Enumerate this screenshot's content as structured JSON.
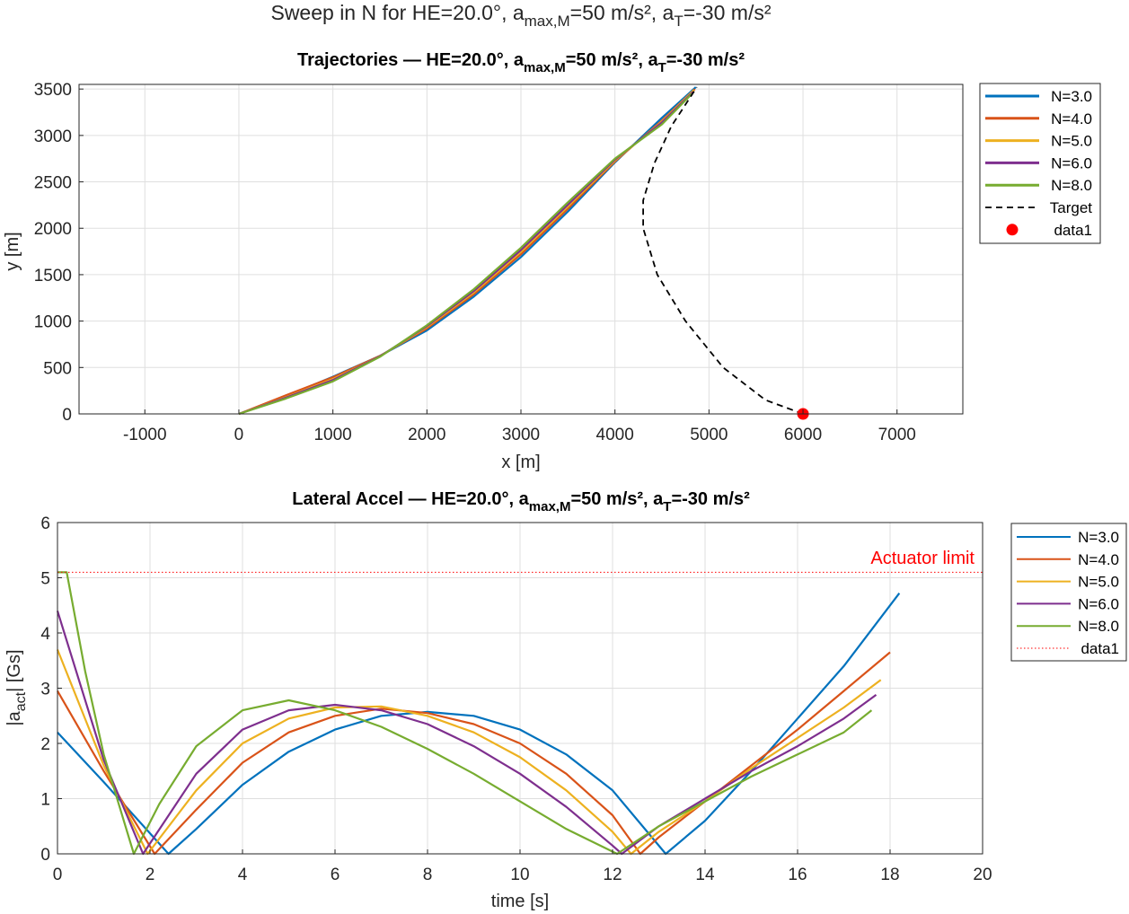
{
  "figure": {
    "title": {
      "prefix": "Sweep in N for HE=20.0°, a",
      "sub1": "max,M",
      "mid": "=50 m/s², a",
      "sub2": "T",
      "suffix": "=-30 m/s²"
    }
  },
  "colors": {
    "N=3.0": "#0072BD",
    "N=4.0": "#D95319",
    "N=5.0": "#EDB120",
    "N=6.0": "#7E2F8E",
    "N=8.0": "#77AC30",
    "target": "#000000",
    "marker": "#FF0000",
    "limit": "#FF0000",
    "grid": "#dfdfdf"
  },
  "chart_data": [
    {
      "type": "line",
      "title": {
        "prefix": "Trajectories — HE=20.0°, a",
        "sub1": "max,M",
        "mid": "=50 m/s², a",
        "sub2": "T",
        "suffix": "=-30 m/s²"
      },
      "xlabel": "x [m]",
      "ylabel": "y [m]",
      "xlim": [
        -1700,
        7700
      ],
      "ylim": [
        0,
        3550
      ],
      "xticks": [
        -1000,
        0,
        1000,
        2000,
        3000,
        4000,
        5000,
        6000,
        7000
      ],
      "yticks": [
        0,
        500,
        1000,
        1500,
        2000,
        2500,
        3000,
        3500
      ],
      "grid": true,
      "legend_position": "outside-right",
      "series": [
        {
          "name": "N=3.0",
          "x": [
            0,
            500,
            1000,
            1500,
            2000,
            2500,
            3000,
            3500,
            4000,
            4500,
            4860
          ],
          "y": [
            0,
            190,
            400,
            625,
            900,
            1265,
            1690,
            2180,
            2710,
            3190,
            3520
          ]
        },
        {
          "name": "N=4.0",
          "x": [
            0,
            500,
            1000,
            1500,
            2000,
            2500,
            3000,
            3500,
            4000,
            4500,
            4850
          ],
          "y": [
            0,
            200,
            395,
            625,
            920,
            1290,
            1720,
            2210,
            2720,
            3160,
            3500
          ]
        },
        {
          "name": "N=5.0",
          "x": [
            0,
            500,
            1000,
            1500,
            2000,
            2500,
            3000,
            3500,
            4000,
            4500,
            4840
          ],
          "y": [
            0,
            180,
            375,
            620,
            935,
            1310,
            1745,
            2235,
            2730,
            3150,
            3490
          ]
        },
        {
          "name": "N=6.0",
          "x": [
            0,
            500,
            1000,
            1500,
            2000,
            2500,
            3000,
            3500,
            4000,
            4500,
            4830
          ],
          "y": [
            0,
            175,
            365,
            620,
            945,
            1325,
            1765,
            2255,
            2740,
            3140,
            3470
          ]
        },
        {
          "name": "N=8.0",
          "x": [
            0,
            500,
            1000,
            1500,
            2000,
            2500,
            3000,
            3500,
            4000,
            4500,
            4820
          ],
          "y": [
            0,
            165,
            350,
            615,
            955,
            1345,
            1790,
            2280,
            2750,
            3120,
            3450
          ]
        },
        {
          "name": "Target",
          "style": "dashed",
          "x": [
            6000,
            5600,
            5150,
            4750,
            4450,
            4300,
            4300,
            4420,
            4600,
            4870
          ],
          "y": [
            0,
            150,
            500,
            1000,
            1500,
            2000,
            2300,
            2700,
            3100,
            3520
          ]
        },
        {
          "name": "data1",
          "style": "marker",
          "x": [
            6000
          ],
          "y": [
            0
          ]
        }
      ]
    },
    {
      "type": "line",
      "title": {
        "prefix": "Lateral Accel — HE=20.0°, a",
        "sub1": "max,M",
        "mid": "=50 m/s², a",
        "sub2": "T",
        "suffix": "=-30 m/s²"
      },
      "xlabel": "time [s]",
      "ylabel": {
        "prefix": "|a",
        "sub": "act",
        "suffix": "| [Gs]"
      },
      "xlim": [
        0,
        20
      ],
      "ylim": [
        0,
        6
      ],
      "xticks": [
        0,
        2,
        4,
        6,
        8,
        10,
        12,
        14,
        16,
        18,
        20
      ],
      "yticks": [
        0,
        1,
        2,
        3,
        4,
        5,
        6
      ],
      "grid": true,
      "legend_position": "outside-right",
      "annotation": "Actuator limit",
      "series": [
        {
          "name": "N=3.0",
          "x": [
            0,
            1,
            2.4,
            3,
            4,
            5,
            6,
            7,
            8,
            9,
            10,
            11,
            12,
            13.15,
            14,
            15,
            16,
            17,
            18.2
          ],
          "y": [
            2.2,
            1.3,
            0,
            0.45,
            1.25,
            1.85,
            2.25,
            2.5,
            2.57,
            2.5,
            2.25,
            1.8,
            1.15,
            0,
            0.6,
            1.5,
            2.45,
            3.4,
            4.72
          ]
        },
        {
          "name": "N=4.0",
          "x": [
            0,
            1,
            2.1,
            3,
            4,
            5,
            6,
            7,
            8,
            9,
            10,
            11,
            12,
            12.6,
            13,
            14,
            15,
            16,
            17,
            18
          ],
          "y": [
            2.95,
            1.5,
            0,
            0.8,
            1.65,
            2.2,
            2.5,
            2.63,
            2.55,
            2.35,
            2.0,
            1.45,
            0.7,
            0,
            0.3,
            0.95,
            1.6,
            2.25,
            2.95,
            3.65
          ]
        },
        {
          "name": "N=5.0",
          "x": [
            0,
            1,
            1.95,
            3,
            4,
            5,
            6,
            7,
            8,
            9,
            10,
            11,
            12,
            12.4,
            13,
            14,
            15,
            16,
            17,
            17.8
          ],
          "y": [
            3.7,
            1.6,
            0,
            1.15,
            2.0,
            2.45,
            2.65,
            2.67,
            2.5,
            2.2,
            1.75,
            1.15,
            0.4,
            0,
            0.4,
            0.95,
            1.55,
            2.1,
            2.65,
            3.15
          ]
        },
        {
          "name": "N=6.0",
          "x": [
            0,
            1,
            1.85,
            3,
            4,
            5,
            6,
            7,
            8,
            9,
            10,
            11,
            12,
            12.2,
            13,
            14,
            15,
            16,
            17,
            17.7
          ],
          "y": [
            4.4,
            1.7,
            0,
            1.45,
            2.25,
            2.6,
            2.7,
            2.6,
            2.35,
            1.95,
            1.45,
            0.85,
            0.15,
            0,
            0.5,
            1.0,
            1.5,
            1.95,
            2.45,
            2.88
          ]
        },
        {
          "name": "N=8.0",
          "x": [
            0,
            0.2,
            0.6,
            1.0,
            1.65,
            2.2,
            3,
            4,
            5,
            6,
            7,
            8,
            9,
            10,
            11,
            12.1,
            13,
            14,
            15,
            16,
            17,
            17.6
          ],
          "y": [
            5.1,
            5.1,
            3.3,
            1.8,
            0,
            0.9,
            1.95,
            2.6,
            2.78,
            2.6,
            2.3,
            1.9,
            1.45,
            0.95,
            0.45,
            0,
            0.5,
            0.95,
            1.4,
            1.8,
            2.2,
            2.6
          ]
        },
        {
          "name": "data1",
          "style": "dotted",
          "x": [
            0,
            20
          ],
          "y": [
            5.1,
            5.1
          ]
        }
      ]
    }
  ]
}
